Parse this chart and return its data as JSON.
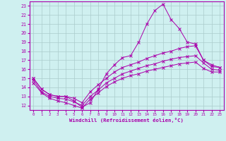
{
  "xlabel": "Windchill (Refroidissement éolien,°C)",
  "background_color": "#cff0f0",
  "grid_color": "#aacccc",
  "line_color": "#aa00aa",
  "xlim": [
    -0.5,
    23.5
  ],
  "ylim": [
    11.5,
    23.5
  ],
  "yticks": [
    12,
    13,
    14,
    15,
    16,
    17,
    18,
    19,
    20,
    21,
    22,
    23
  ],
  "xticks": [
    0,
    1,
    2,
    3,
    4,
    5,
    6,
    7,
    8,
    9,
    10,
    11,
    12,
    13,
    14,
    15,
    16,
    17,
    18,
    19,
    20,
    21,
    22,
    23
  ],
  "line1_x": [
    0,
    1,
    2,
    3,
    4,
    5,
    6,
    7,
    8,
    9,
    10,
    11,
    12,
    13,
    14,
    15,
    16,
    17,
    18,
    19,
    20,
    21,
    22,
    23
  ],
  "line1_y": [
    15.0,
    13.8,
    13.2,
    13.0,
    13.0,
    12.5,
    11.8,
    12.3,
    13.8,
    15.5,
    16.5,
    17.3,
    17.5,
    19.0,
    21.0,
    22.5,
    23.2,
    21.5,
    20.5,
    19.0,
    18.8,
    17.0,
    16.5,
    16.2
  ],
  "line2_x": [
    0,
    1,
    2,
    3,
    4,
    5,
    6,
    7,
    8,
    9,
    10,
    11,
    12,
    13,
    14,
    15,
    16,
    17,
    18,
    19,
    20,
    21,
    22,
    23
  ],
  "line2_y": [
    15.0,
    13.8,
    13.2,
    13.0,
    13.0,
    12.8,
    12.3,
    13.5,
    14.3,
    15.0,
    15.7,
    16.2,
    16.5,
    16.8,
    17.2,
    17.5,
    17.8,
    18.0,
    18.3,
    18.5,
    18.6,
    17.0,
    16.3,
    16.2
  ],
  "line3_x": [
    0,
    1,
    2,
    3,
    4,
    5,
    6,
    7,
    8,
    9,
    10,
    11,
    12,
    13,
    14,
    15,
    16,
    17,
    18,
    19,
    20,
    21,
    22,
    23
  ],
  "line3_y": [
    14.8,
    13.5,
    13.0,
    12.8,
    12.7,
    12.4,
    12.0,
    13.0,
    13.7,
    14.5,
    15.0,
    15.5,
    15.8,
    16.1,
    16.4,
    16.6,
    16.9,
    17.1,
    17.3,
    17.4,
    17.5,
    16.7,
    16.0,
    15.9
  ],
  "line4_x": [
    0,
    1,
    2,
    3,
    4,
    5,
    6,
    7,
    8,
    9,
    10,
    11,
    12,
    13,
    14,
    15,
    16,
    17,
    18,
    19,
    20,
    21,
    22,
    23
  ],
  "line4_y": [
    14.5,
    13.4,
    12.8,
    12.5,
    12.3,
    12.0,
    11.7,
    12.7,
    13.4,
    14.1,
    14.6,
    15.0,
    15.3,
    15.5,
    15.8,
    16.0,
    16.2,
    16.4,
    16.6,
    16.7,
    16.8,
    16.1,
    15.7,
    15.7
  ]
}
